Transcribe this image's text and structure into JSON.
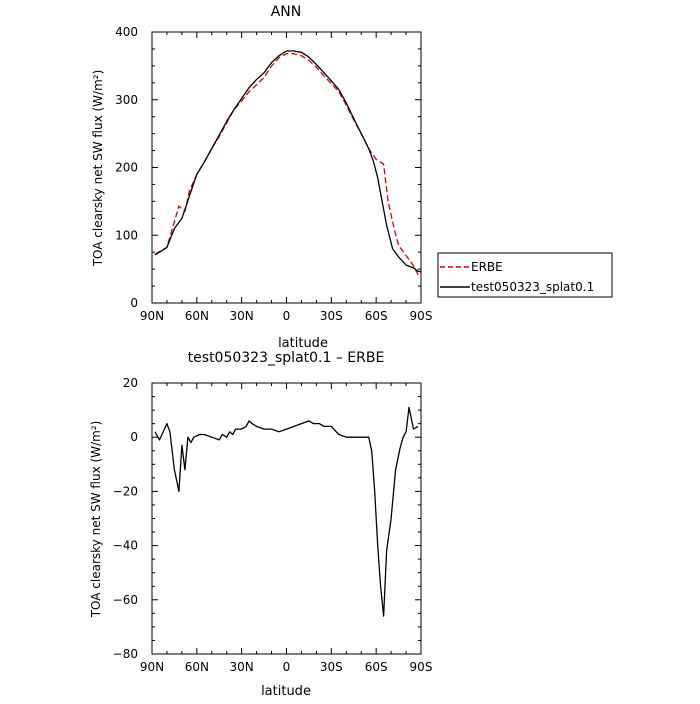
{
  "chart_data": [
    {
      "type": "line",
      "title": "ANN",
      "xlabel": "latitude",
      "ylabel": "TOA clearsky net SW flux (W/m²)",
      "xlim": [
        90,
        -90
      ],
      "ylim": [
        0,
        400
      ],
      "x_ticks": [
        90,
        60,
        30,
        0,
        -30,
        -60,
        -90
      ],
      "x_tick_labels": [
        "90N",
        "60N",
        "30N",
        "0",
        "30S",
        "60S",
        "90S"
      ],
      "y_ticks": [
        0,
        100,
        200,
        300,
        400
      ],
      "y_tick_labels": [
        "0",
        "100",
        "200",
        "300",
        "400"
      ],
      "legend": {
        "placement": "right, outside plot",
        "entries": [
          "ERBE",
          "test050323_splat0.1"
        ]
      },
      "series": [
        {
          "name": "ERBE",
          "color": "#e00000",
          "dash": "dashed",
          "points": [
            [
              88,
              72
            ],
            [
              85,
              76
            ],
            [
              80,
              82
            ],
            [
              75,
              120
            ],
            [
              72,
              143
            ],
            [
              68,
              135
            ],
            [
              65,
              165
            ],
            [
              60,
              190
            ],
            [
              55,
              208
            ],
            [
              50,
              228
            ],
            [
              45,
              246
            ],
            [
              40,
              266
            ],
            [
              35,
              286
            ],
            [
              30,
              298
            ],
            [
              25,
              312
            ],
            [
              20,
              322
            ],
            [
              15,
              333
            ],
            [
              10,
              350
            ],
            [
              5,
              362
            ],
            [
              0,
              368
            ],
            [
              -5,
              368
            ],
            [
              -10,
              365
            ],
            [
              -15,
              358
            ],
            [
              -20,
              348
            ],
            [
              -25,
              335
            ],
            [
              -30,
              324
            ],
            [
              -35,
              312
            ],
            [
              -40,
              292
            ],
            [
              -45,
              270
            ],
            [
              -50,
              250
            ],
            [
              -55,
              228
            ],
            [
              -60,
              212
            ],
            [
              -65,
              205
            ],
            [
              -68,
              150
            ],
            [
              -72,
              110
            ],
            [
              -75,
              85
            ],
            [
              -80,
              70
            ],
            [
              -85,
              55
            ],
            [
              -88,
              42
            ],
            [
              -90,
              44
            ]
          ]
        },
        {
          "name": "test050323_splat0.1",
          "color": "#000000",
          "dash": "solid",
          "points": [
            [
              88,
              71
            ],
            [
              85,
              75
            ],
            [
              80,
              82
            ],
            [
              75,
              110
            ],
            [
              70,
              125
            ],
            [
              68,
              138
            ],
            [
              65,
              158
            ],
            [
              60,
              190
            ],
            [
              55,
              208
            ],
            [
              50,
              228
            ],
            [
              45,
              248
            ],
            [
              40,
              268
            ],
            [
              35,
              286
            ],
            [
              30,
              302
            ],
            [
              25,
              318
            ],
            [
              20,
              330
            ],
            [
              15,
              340
            ],
            [
              10,
              355
            ],
            [
              5,
              365
            ],
            [
              0,
              372
            ],
            [
              -5,
              372
            ],
            [
              -10,
              370
            ],
            [
              -15,
              363
            ],
            [
              -20,
              352
            ],
            [
              -25,
              340
            ],
            [
              -30,
              328
            ],
            [
              -35,
              315
            ],
            [
              -40,
              295
            ],
            [
              -45,
              272
            ],
            [
              -50,
              250
            ],
            [
              -55,
              228
            ],
            [
              -58,
              210
            ],
            [
              -61,
              185
            ],
            [
              -64,
              150
            ],
            [
              -67,
              115
            ],
            [
              -71,
              80
            ],
            [
              -75,
              68
            ],
            [
              -80,
              56
            ],
            [
              -85,
              52
            ],
            [
              -88,
              47
            ],
            [
              -90,
              46
            ]
          ]
        }
      ]
    },
    {
      "type": "line",
      "title": "test050323_splat0.1 – ERBE",
      "xlabel": "latitude",
      "ylabel": "TOA clearsky net SW flux (W/m²)",
      "xlim": [
        90,
        -90
      ],
      "ylim": [
        -80,
        20
      ],
      "x_ticks": [
        90,
        60,
        30,
        0,
        -30,
        -60,
        -90
      ],
      "x_tick_labels": [
        "90N",
        "60N",
        "30N",
        "0",
        "30S",
        "60S",
        "90S"
      ],
      "y_ticks": [
        -80,
        -60,
        -40,
        -20,
        0,
        20
      ],
      "y_tick_labels": [
        "−80",
        "−60",
        "−40",
        "−20",
        "0",
        "20"
      ],
      "series": [
        {
          "color": "#000000",
          "dash": "solid",
          "points": [
            [
              88,
              2
            ],
            [
              85,
              -1
            ],
            [
              80,
              5
            ],
            [
              78,
              2
            ],
            [
              75,
              -12
            ],
            [
              72,
              -20
            ],
            [
              70,
              -3
            ],
            [
              68,
              -12
            ],
            [
              66,
              0
            ],
            [
              64,
              -2
            ],
            [
              62,
              0
            ],
            [
              58,
              1
            ],
            [
              55,
              1
            ],
            [
              50,
              0
            ],
            [
              45,
              -1
            ],
            [
              43,
              1
            ],
            [
              40,
              0
            ],
            [
              38,
              2
            ],
            [
              36,
              1
            ],
            [
              34,
              3
            ],
            [
              30,
              3
            ],
            [
              27,
              4
            ],
            [
              25,
              6
            ],
            [
              23,
              5
            ],
            [
              20,
              4
            ],
            [
              15,
              3
            ],
            [
              10,
              3
            ],
            [
              5,
              2
            ],
            [
              0,
              3
            ],
            [
              -5,
              4
            ],
            [
              -10,
              5
            ],
            [
              -15,
              6
            ],
            [
              -18,
              5
            ],
            [
              -22,
              5
            ],
            [
              -25,
              4
            ],
            [
              -30,
              4
            ],
            [
              -35,
              1
            ],
            [
              -40,
              0
            ],
            [
              -45,
              0
            ],
            [
              -50,
              0
            ],
            [
              -52,
              0
            ],
            [
              -55,
              0
            ],
            [
              -57,
              -5
            ],
            [
              -59,
              -20
            ],
            [
              -61,
              -40
            ],
            [
              -63,
              -55
            ],
            [
              -65,
              -66
            ],
            [
              -67,
              -42
            ],
            [
              -70,
              -30
            ],
            [
              -73,
              -12
            ],
            [
              -76,
              -4
            ],
            [
              -78,
              0
            ],
            [
              -80,
              2
            ],
            [
              -82,
              11
            ],
            [
              -85,
              3
            ],
            [
              -88,
              4
            ]
          ]
        }
      ]
    }
  ]
}
